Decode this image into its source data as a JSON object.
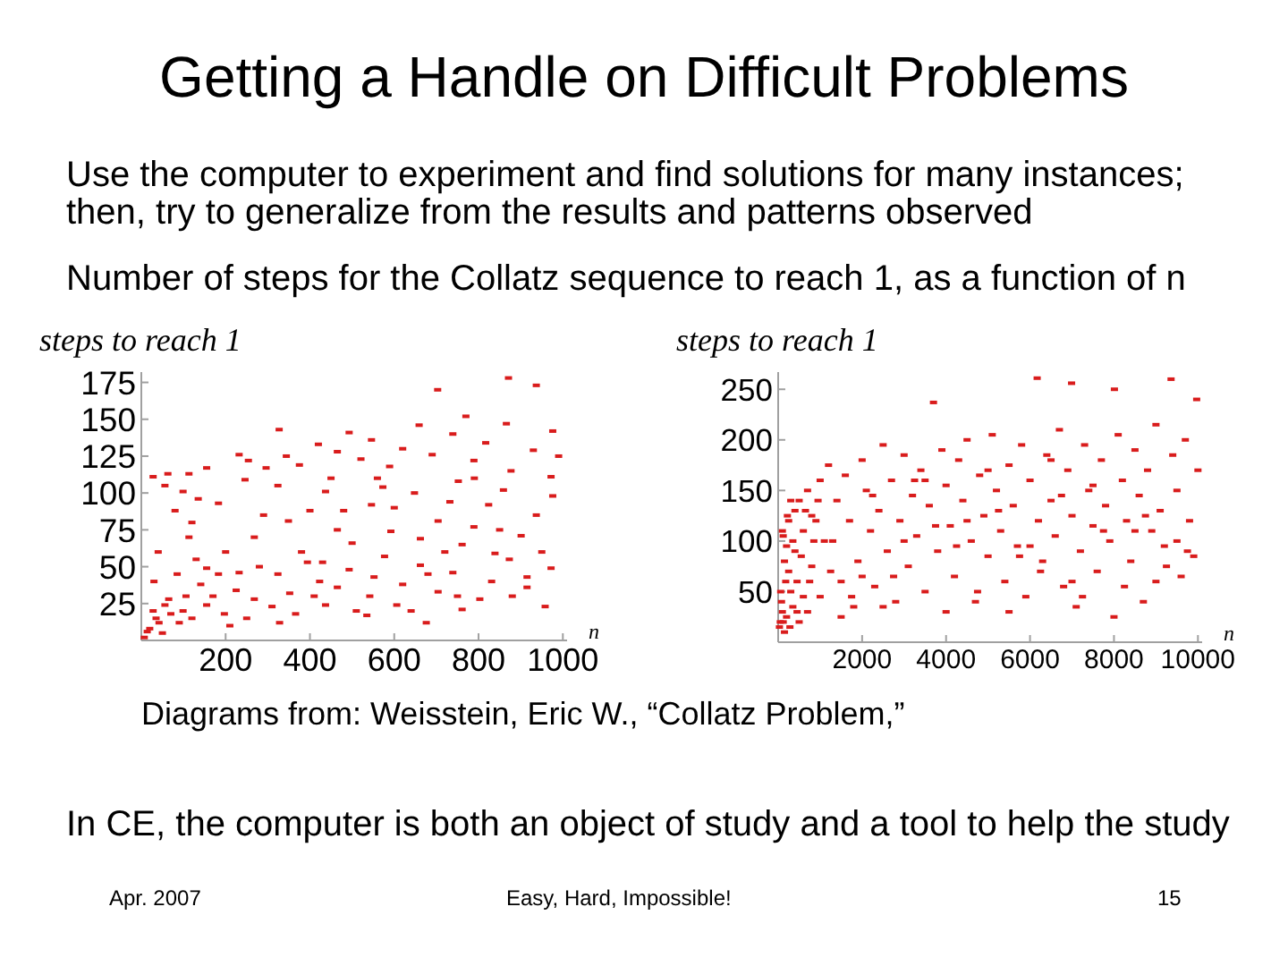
{
  "chart_data": [
    {
      "type": "other",
      "title": "Getting a Handle on Difficult Problems",
      "annotations": [
        "Use the computer to experiment and find solutions for many instances;",
        "then, try to generalize from the results and patterns observed",
        "Number of steps for the Collatz sequence to reach 1, as a function of n"
      ]
    },
    {
      "type": "scatter",
      "ylabel": "steps to reach 1",
      "xlabel": "n",
      "color": "#d91c1c",
      "marker": "square",
      "xlim": [
        0,
        1010
      ],
      "ylim": [
        0,
        182
      ],
      "xticks": [
        200,
        400,
        600,
        800,
        1000
      ],
      "yticks": [
        25,
        50,
        75,
        100,
        125,
        150,
        175
      ],
      "x": [
        7,
        14,
        28,
        28,
        30,
        40,
        42,
        56,
        56,
        63,
        70,
        80,
        85,
        99,
        99,
        106,
        113,
        113,
        120,
        135,
        141,
        155,
        155,
        155,
        183,
        183,
        197,
        225,
        232,
        232,
        246,
        254,
        268,
        268,
        296,
        310,
        324,
        324,
        327,
        328,
        344,
        349,
        352,
        366,
        375,
        394,
        420,
        423,
        430,
        437,
        437,
        465,
        465,
        465,
        493,
        493,
        500,
        521,
        535,
        542,
        546,
        546,
        552,
        573,
        577,
        589,
        592,
        606,
        620,
        620,
        648,
        659,
        662,
        662,
        676,
        690,
        703,
        704,
        704,
        732,
        739,
        739,
        752,
        761,
        761,
        770,
        789,
        789,
        803,
        817,
        824,
        831,
        839,
        859,
        866,
        871,
        873,
        877,
        901,
        915,
        915,
        930,
        937,
        937,
        958,
        972,
        972,
        976,
        976,
        20,
        35,
        50,
        65,
        90,
        120,
        130,
        170,
        200,
        210,
        250,
        280,
        290,
        380,
        400,
        410,
        450,
        480,
        510,
        560,
        600,
        640,
        680,
        720,
        750,
        790,
        850,
        880,
        950,
        990
      ],
      "values": [
        2,
        6,
        20,
        111,
        40,
        60,
        12,
        24,
        105,
        113,
        18,
        88,
        45,
        20,
        101,
        30,
        70,
        113,
        80,
        96,
        38,
        24,
        49,
        117,
        45,
        93,
        18,
        34,
        46,
        126,
        109,
        122,
        28,
        70,
        117,
        23,
        45,
        105,
        143,
        12,
        125,
        81,
        32,
        18,
        119,
        53,
        133,
        40,
        53,
        24,
        101,
        36,
        75,
        128,
        48,
        141,
        66,
        123,
        17,
        30,
        92,
        136,
        43,
        104,
        57,
        118,
        74,
        24,
        38,
        130,
        100,
        146,
        51,
        69,
        12,
        126,
        170,
        33,
        81,
        94,
        46,
        140,
        108,
        21,
        65,
        152,
        77,
        122,
        28,
        134,
        92,
        40,
        59,
        102,
        147,
        178,
        55,
        115,
        71,
        36,
        43,
        129,
        85,
        173,
        23,
        49,
        111,
        98,
        142,
        8,
        15,
        5,
        28,
        12,
        15,
        55,
        30,
        60,
        10,
        15,
        50,
        85,
        60,
        88,
        30,
        110,
        88,
        20,
        110,
        90,
        20,
        45,
        60,
        30,
        110,
        75,
        30,
        60,
        125
      ]
    },
    {
      "type": "scatter",
      "ylabel": "steps to reach 1",
      "xlabel": "n",
      "color": "#d91c1c",
      "marker": "square",
      "xlim": [
        0,
        10100
      ],
      "ylim": [
        0,
        267
      ],
      "xticks": [
        2000,
        4000,
        6000,
        8000,
        10000
      ],
      "yticks": [
        50,
        100,
        150,
        200,
        250
      ],
      "x": [
        30,
        50,
        80,
        100,
        100,
        120,
        150,
        150,
        200,
        200,
        250,
        250,
        300,
        300,
        350,
        400,
        400,
        450,
        500,
        500,
        600,
        600,
        700,
        700,
        800,
        800,
        900,
        1000,
        1000,
        1100,
        1200,
        1300,
        1400,
        1500,
        1600,
        1700,
        1800,
        1900,
        2000,
        2100,
        2200,
        2300,
        2400,
        2500,
        2600,
        2700,
        2800,
        2900,
        3000,
        3100,
        3200,
        3300,
        3400,
        3500,
        3600,
        3700,
        3800,
        3900,
        4000,
        4100,
        4200,
        4300,
        4400,
        4500,
        4600,
        4700,
        4800,
        4900,
        5000,
        5100,
        5200,
        5300,
        5400,
        5500,
        5600,
        5700,
        5800,
        5900,
        6000,
        6170,
        6200,
        6300,
        6400,
        6500,
        6600,
        6700,
        6800,
        6900,
        6990,
        7000,
        7100,
        7200,
        7300,
        7400,
        7500,
        7600,
        7700,
        7800,
        7900,
        8010,
        8100,
        8200,
        8300,
        8400,
        8500,
        8600,
        8700,
        8800,
        8900,
        9000,
        9100,
        9200,
        9360,
        9400,
        9500,
        9600,
        9700,
        9800,
        9900,
        9970,
        10000,
        1250,
        1750,
        2250,
        2750,
        3250,
        3750,
        4250,
        4750,
        5250,
        5750,
        6250,
        6750,
        7250,
        7750,
        8250,
        8750,
        9250,
        9750,
        1500,
        2000,
        2500,
        3000,
        3500,
        4000,
        4500,
        5000,
        5500,
        6000,
        6500,
        7000,
        7500,
        8000,
        8500,
        9000,
        9500,
        60,
        120,
        180,
        220,
        280,
        350,
        450,
        550,
        650,
        750,
        850,
        950
      ],
      "values": [
        15,
        20,
        40,
        30,
        110,
        105,
        10,
        80,
        95,
        25,
        70,
        120,
        50,
        140,
        35,
        130,
        90,
        60,
        140,
        20,
        110,
        45,
        150,
        30,
        75,
        125,
        120,
        160,
        45,
        100,
        175,
        100,
        140,
        60,
        165,
        120,
        35,
        80,
        180,
        150,
        110,
        55,
        130,
        195,
        90,
        160,
        40,
        120,
        185,
        75,
        145,
        105,
        170,
        50,
        135,
        237,
        90,
        190,
        155,
        115,
        65,
        180,
        140,
        200,
        100,
        40,
        165,
        125,
        85,
        205,
        150,
        110,
        60,
        175,
        135,
        95,
        195,
        45,
        160,
        261,
        120,
        80,
        185,
        140,
        105,
        210,
        55,
        170,
        256,
        125,
        35,
        90,
        195,
        150,
        115,
        70,
        180,
        135,
        100,
        250,
        205,
        160,
        120,
        80,
        190,
        145,
        40,
        170,
        110,
        215,
        130,
        95,
        260,
        185,
        150,
        65,
        200,
        120,
        85,
        240,
        170,
        70,
        45,
        145,
        65,
        160,
        115,
        95,
        50,
        130,
        85,
        70,
        145,
        45,
        110,
        55,
        125,
        75,
        90,
        25,
        65,
        35,
        100,
        160,
        30,
        120,
        170,
        30,
        95,
        180,
        60,
        155,
        25,
        110,
        60,
        100,
        50,
        20,
        60,
        125,
        15,
        100,
        30,
        85,
        130,
        60,
        100,
        140
      ]
    },
    {
      "type": "other",
      "annotations": [
        "Diagrams from: Weisstein, Eric W., “Collatz Problem,”",
        "In CE, the computer is both an object of study and a tool to help the study",
        "Apr. 2007",
        "Easy, Hard, Impossible!",
        "15"
      ]
    }
  ]
}
